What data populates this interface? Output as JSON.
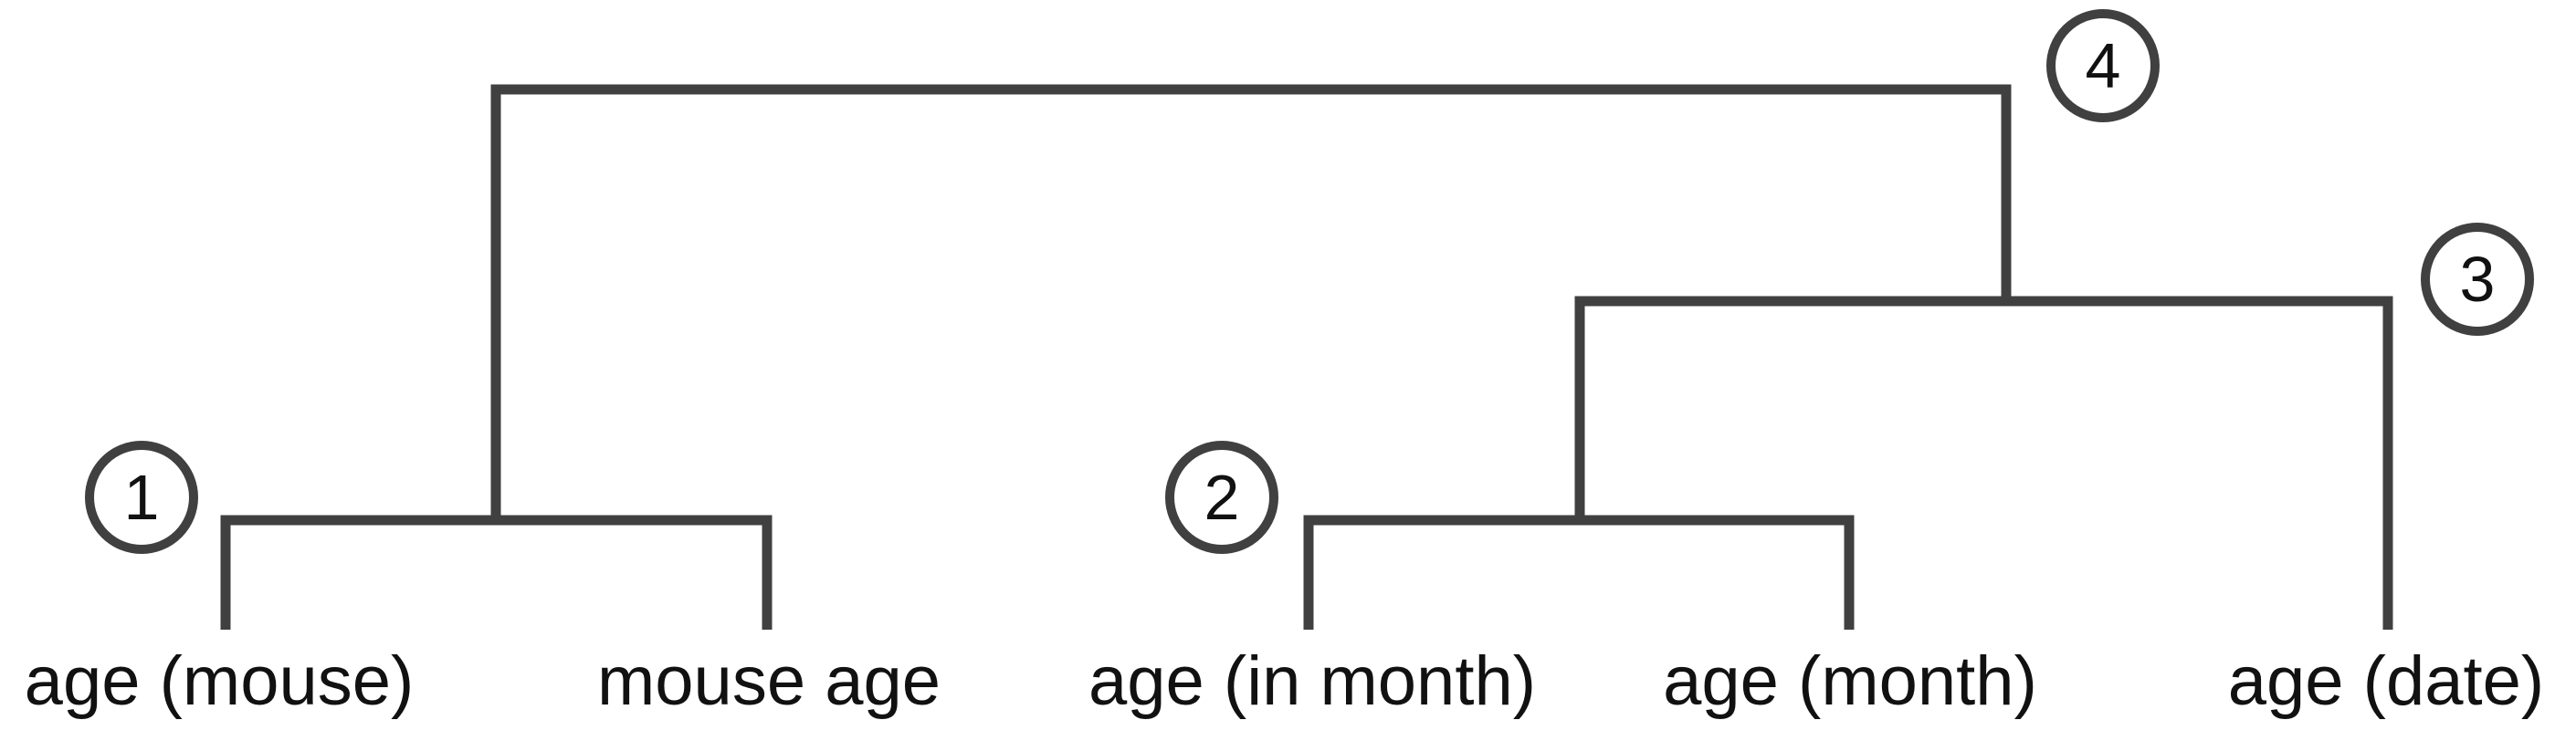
{
  "diagram": {
    "type": "dendrogram",
    "line_color": "#404040",
    "text_color": "#111111",
    "leaves": [
      "age (mouse)",
      "mouse age",
      "age (in month)",
      "age (month)",
      "age (date)"
    ],
    "merges": [
      {
        "label": "1",
        "joins": [
          "age (mouse)",
          "mouse age"
        ]
      },
      {
        "label": "2",
        "joins": [
          "age (in month)",
          "age (month)"
        ]
      },
      {
        "label": "3",
        "joins": [
          "merge 2",
          "age (date)"
        ]
      },
      {
        "label": "4",
        "joins": [
          "merge 1",
          "merge 3"
        ]
      }
    ]
  }
}
